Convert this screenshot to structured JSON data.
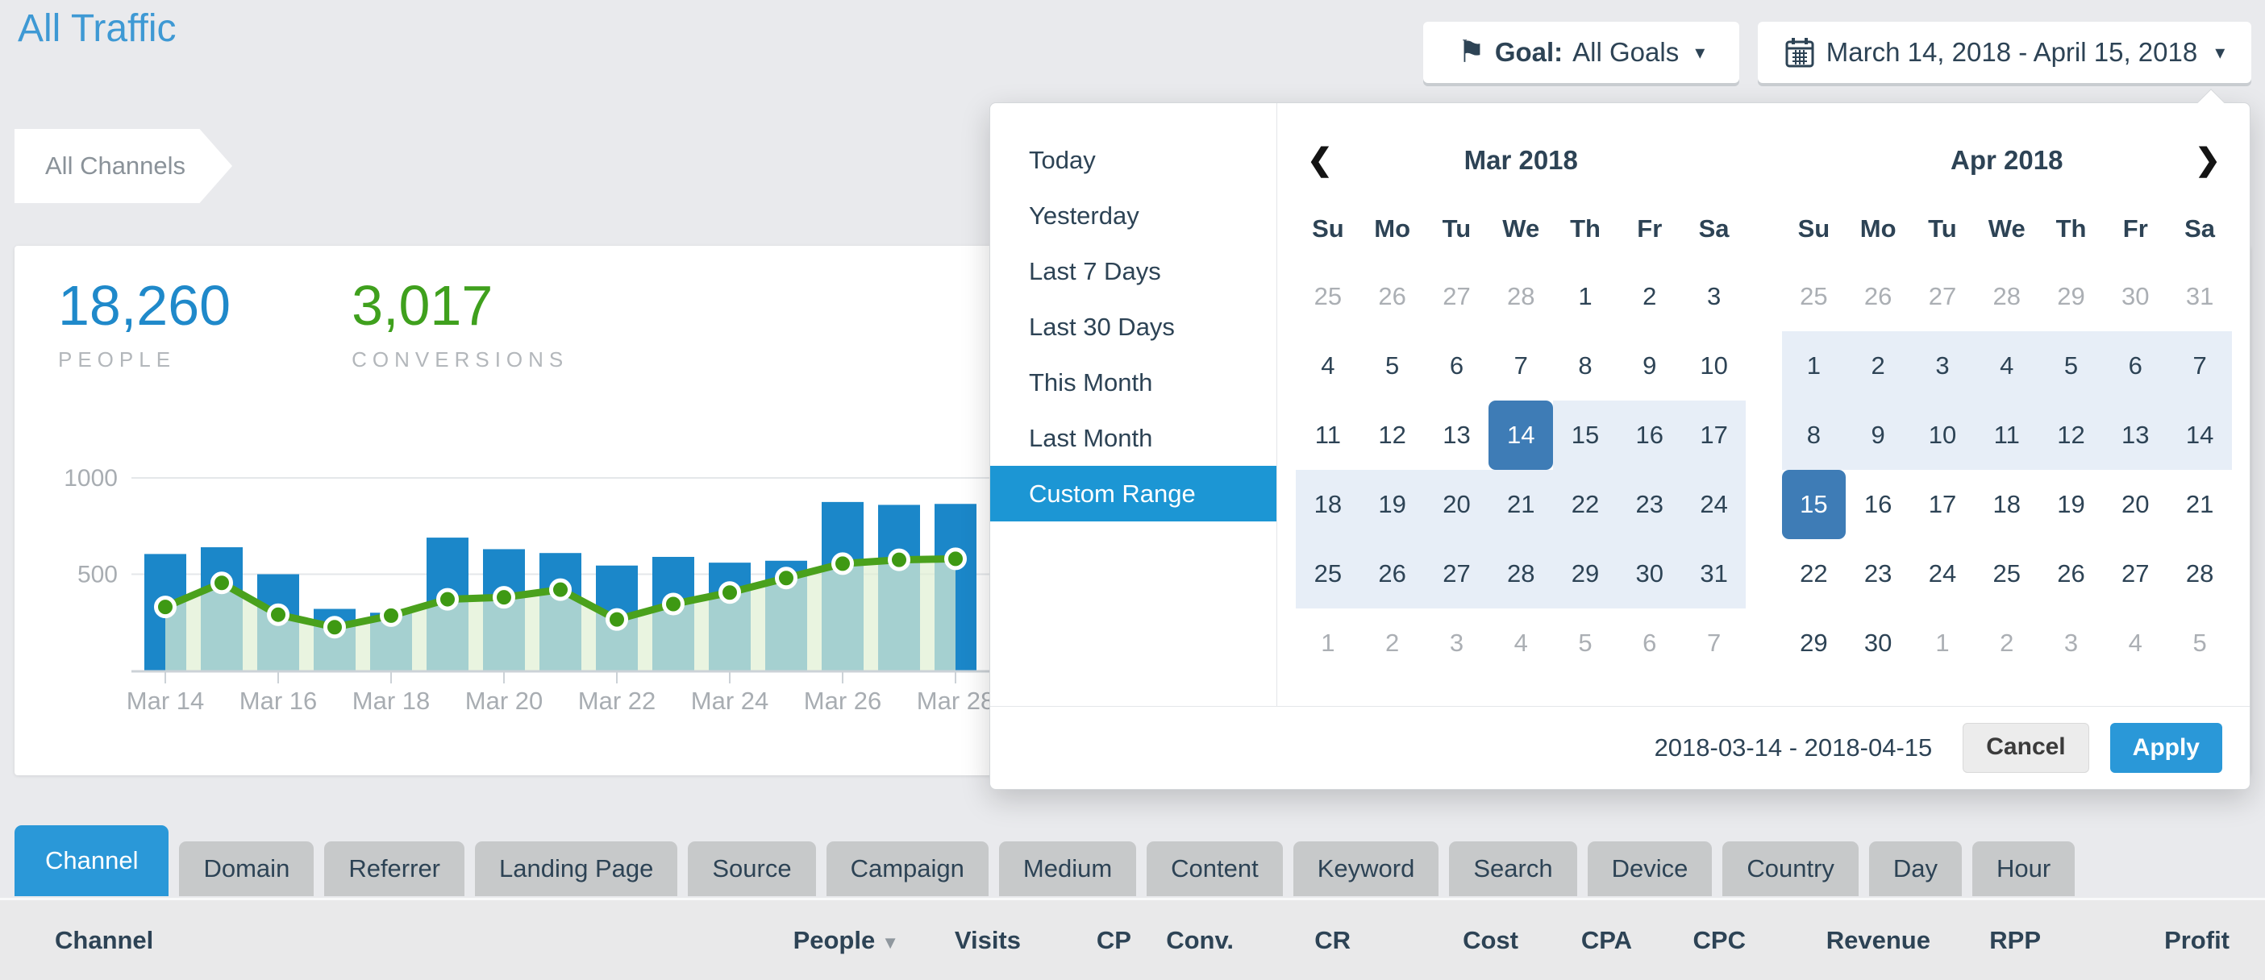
{
  "header": {
    "title": "All Traffic",
    "goal_label": "Goal:",
    "goal_value": "All Goals",
    "date_range": "March 14, 2018 - April 15, 2018"
  },
  "breadcrumb": {
    "label": "All Channels"
  },
  "stats": {
    "people": {
      "value": "18,260",
      "label": "PEOPLE"
    },
    "conversions": {
      "value": "3,017",
      "label": "CONVERSIONS"
    }
  },
  "chart_data": {
    "type": "bar",
    "categories": [
      "Mar 14",
      "Mar 15",
      "Mar 16",
      "Mar 17",
      "Mar 18",
      "Mar 19",
      "Mar 20",
      "Mar 21",
      "Mar 22",
      "Mar 23",
      "Mar 24",
      "Mar 25",
      "Mar 26",
      "Mar 27",
      "Mar 28"
    ],
    "x_tick_labels": [
      "Mar 14",
      "Mar 16",
      "Mar 18",
      "Mar 20",
      "Mar 22",
      "Mar 24",
      "Mar 26",
      "Mar 28"
    ],
    "series": [
      {
        "name": "People",
        "type": "bar",
        "color": "#1b87c9",
        "values": [
          605,
          640,
          500,
          320,
          300,
          690,
          630,
          610,
          545,
          590,
          560,
          570,
          875,
          860,
          865
        ]
      },
      {
        "name": "Conversions",
        "type": "line",
        "color": "#4aa11c",
        "marker_fill": "#3e9913",
        "marker_stroke": "#ffffff",
        "area_fill": "rgba(224,239,211,0.7)",
        "values": [
          330,
          455,
          290,
          225,
          285,
          370,
          380,
          420,
          265,
          345,
          405,
          480,
          555,
          575,
          580
        ]
      }
    ],
    "title": "",
    "xlabel": "",
    "ylabel": "",
    "yticks": [
      500,
      1000
    ],
    "ylim": [
      0,
      1100
    ],
    "grid": true,
    "legend": false,
    "note": "right portion of chart hidden behind open date-picker panel"
  },
  "datepicker": {
    "presets": {
      "items": [
        "Today",
        "Yesterday",
        "Last 7 Days",
        "Last 30 Days",
        "This Month",
        "Last Month",
        "Custom Range"
      ],
      "active": "Custom Range"
    },
    "weekdays": [
      "Su",
      "Mo",
      "Tu",
      "We",
      "Th",
      "Fr",
      "Sa"
    ],
    "nav": {
      "prev": "❮",
      "next": "❯"
    },
    "months": [
      {
        "title": "Mar 2018",
        "nav": "prev",
        "weeks": [
          [
            "25m",
            "26m",
            "27m",
            "28m",
            "1",
            "2",
            "3"
          ],
          [
            "4",
            "5",
            "6",
            "7",
            "8",
            "9",
            "10"
          ],
          [
            "11",
            "12",
            "13",
            "14s",
            "15r",
            "16r",
            "17r"
          ],
          [
            "18r",
            "19r",
            "20r",
            "21r",
            "22r",
            "23r",
            "24r"
          ],
          [
            "25r",
            "26r",
            "27r",
            "28r",
            "29r",
            "30r",
            "31r"
          ],
          [
            "1m",
            "2m",
            "3m",
            "4m",
            "5m",
            "6m",
            "7m"
          ]
        ]
      },
      {
        "title": "Apr 2018",
        "nav": "next",
        "weeks": [
          [
            "25m",
            "26m",
            "27m",
            "28m",
            "29m",
            "30m",
            "31m"
          ],
          [
            "1r",
            "2r",
            "3r",
            "4r",
            "5r",
            "6r",
            "7r"
          ],
          [
            "8r",
            "9r",
            "10r",
            "11r",
            "12r",
            "13r",
            "14r"
          ],
          [
            "15s",
            "16",
            "17",
            "18",
            "19",
            "20",
            "21"
          ],
          [
            "22",
            "23",
            "24",
            "25",
            "26",
            "27",
            "28"
          ],
          [
            "29",
            "30",
            "1m",
            "2m",
            "3m",
            "4m",
            "5m"
          ]
        ]
      }
    ],
    "footer": {
      "range_text": "2018-03-14 - 2018-04-15",
      "cancel_label": "Cancel",
      "apply_label": "Apply"
    },
    "colors": {
      "selected_day": "#3e7cb6",
      "range_day": "#e7eef7",
      "active_preset": "#1c96d4"
    }
  },
  "tabs": {
    "active": "Channel",
    "items": [
      "Channel",
      "Domain",
      "Referrer",
      "Landing Page",
      "Source",
      "Campaign",
      "Medium",
      "Content",
      "Keyword",
      "Search",
      "Device",
      "Country",
      "Day",
      "Hour"
    ]
  },
  "table": {
    "sort_column": "People",
    "columns": [
      "Channel",
      "People",
      "Visits",
      "CP",
      "Conv.",
      "CR",
      "Cost",
      "CPA",
      "CPC",
      "Revenue",
      "RPP",
      "Profit"
    ]
  },
  "colors": {
    "accent_blue": "#2a98d8",
    "bar_blue": "#1b87c9",
    "line_green": "#4aa11c",
    "stat_blue": "#1f89ca",
    "stat_green": "#3fa01d",
    "title_blue": "#3e99d4"
  }
}
